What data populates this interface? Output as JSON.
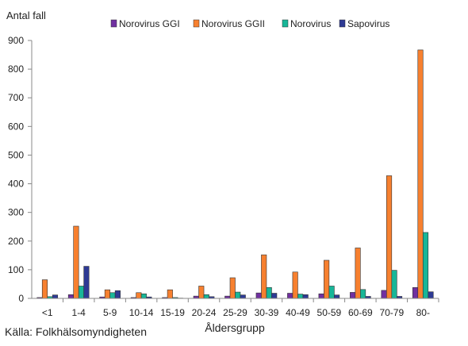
{
  "chart_data": {
    "type": "bar",
    "ylabel": "Antal fall",
    "xlabel": "Åldersgrupp",
    "ylim": [
      0,
      900
    ],
    "yticks": [
      0,
      100,
      200,
      300,
      400,
      500,
      600,
      700,
      800,
      900
    ],
    "categories": [
      "<1",
      "1-4",
      "5-9",
      "10-14",
      "15-19",
      "20-24",
      "25-29",
      "30-39",
      "40-49",
      "50-59",
      "60-69",
      "70-79",
      "80-"
    ],
    "series": [
      {
        "name": "Norovirus  GGI",
        "color": "#7030a0",
        "values": [
          3,
          13,
          5,
          3,
          3,
          8,
          8,
          19,
          18,
          16,
          21,
          28,
          38
        ]
      },
      {
        "name": "Norovirus GGII",
        "color": "#f7802f",
        "values": [
          65,
          252,
          30,
          20,
          30,
          43,
          72,
          152,
          92,
          133,
          176,
          428,
          867
        ]
      },
      {
        "name": "Norovirus",
        "color": "#18b698",
        "values": [
          6,
          43,
          20,
          16,
          3,
          13,
          22,
          38,
          15,
          43,
          31,
          98,
          230
        ]
      },
      {
        "name": "Sapovirus",
        "color": "#2e3a94",
        "values": [
          12,
          112,
          27,
          5,
          1,
          6,
          12,
          18,
          13,
          12,
          7,
          7,
          23
        ]
      }
    ],
    "legend_position": "top-right",
    "grid": false
  },
  "source": "Källa:  Folkhälsomyndigheten"
}
